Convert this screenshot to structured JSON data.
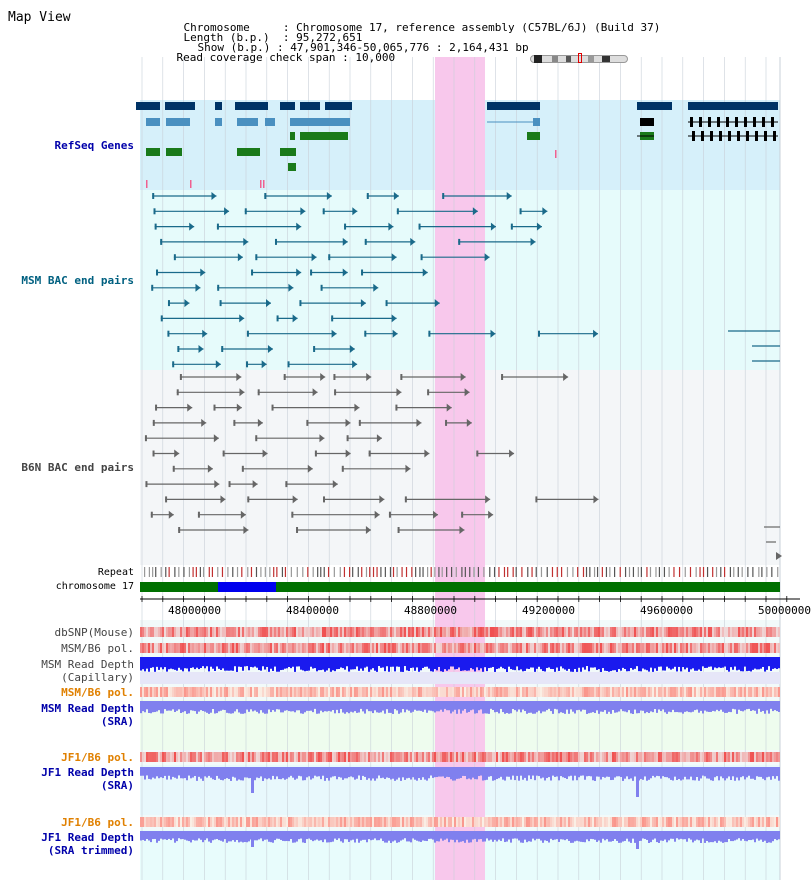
{
  "header": {
    "title": "Map View",
    "chromosome_label": "Chromosome",
    "chromosome_value": "Chromosome 17, reference assembly (C57BL/6J) (Build 37)",
    "length_label": "Length (b.p.)",
    "length_value": "95,272,651",
    "show_label": "Show (b.p.)",
    "show_value": "47,901,346-50,065,776 : 2,164,431 bp",
    "coverage_label": "Read coverage check span",
    "coverage_value": "10,000"
  },
  "tracks": {
    "refseq": "RefSeq Genes",
    "msm_bac": "MSM BAC end pairs",
    "b6n_bac": "B6N BAC end pairs",
    "repeat": "Repeat",
    "chromosome": "chromosome 17",
    "dbsnp": "dbSNP(Mouse)",
    "msm_b6_pol_1": "MSM/B6 pol.",
    "msm_read_depth_cap_1": "MSM Read Depth",
    "msm_read_depth_cap_2": "(Capillary)",
    "msm_b6_pol_2": "MSM/B6 pol.",
    "msm_read_depth_sra_1": "MSM Read Depth",
    "msm_read_depth_sra_2": "(SRA)",
    "jf1_b6_pol_1": "JF1/B6 pol.",
    "jf1_read_depth_sra_1": "JF1 Read Depth",
    "jf1_read_depth_sra_2": "(SRA)",
    "jf1_b6_pol_2": "JF1/B6 pol.",
    "jf1_read_depth_trim_1": "JF1 Read Depth",
    "jf1_read_depth_trim_2": "(SRA trimmed)"
  },
  "axis": {
    "ticks": [
      "48000000",
      "48400000",
      "48800000",
      "49200000",
      "49600000",
      "50000000"
    ]
  },
  "colors": {
    "refseq_label": "#0000aa",
    "msm_label": "#006080",
    "b6n_label": "#444444",
    "orange_label": "#e08000",
    "blue_label": "#0000aa",
    "highlight": "#f8c8ec",
    "refseq_bg": "#d6f0fa",
    "msm_bg": "#e6fbfb",
    "b6n_bg": "#f4f6f8",
    "chrom_green": "#007000",
    "chrom_blue": "#0000ee"
  }
}
